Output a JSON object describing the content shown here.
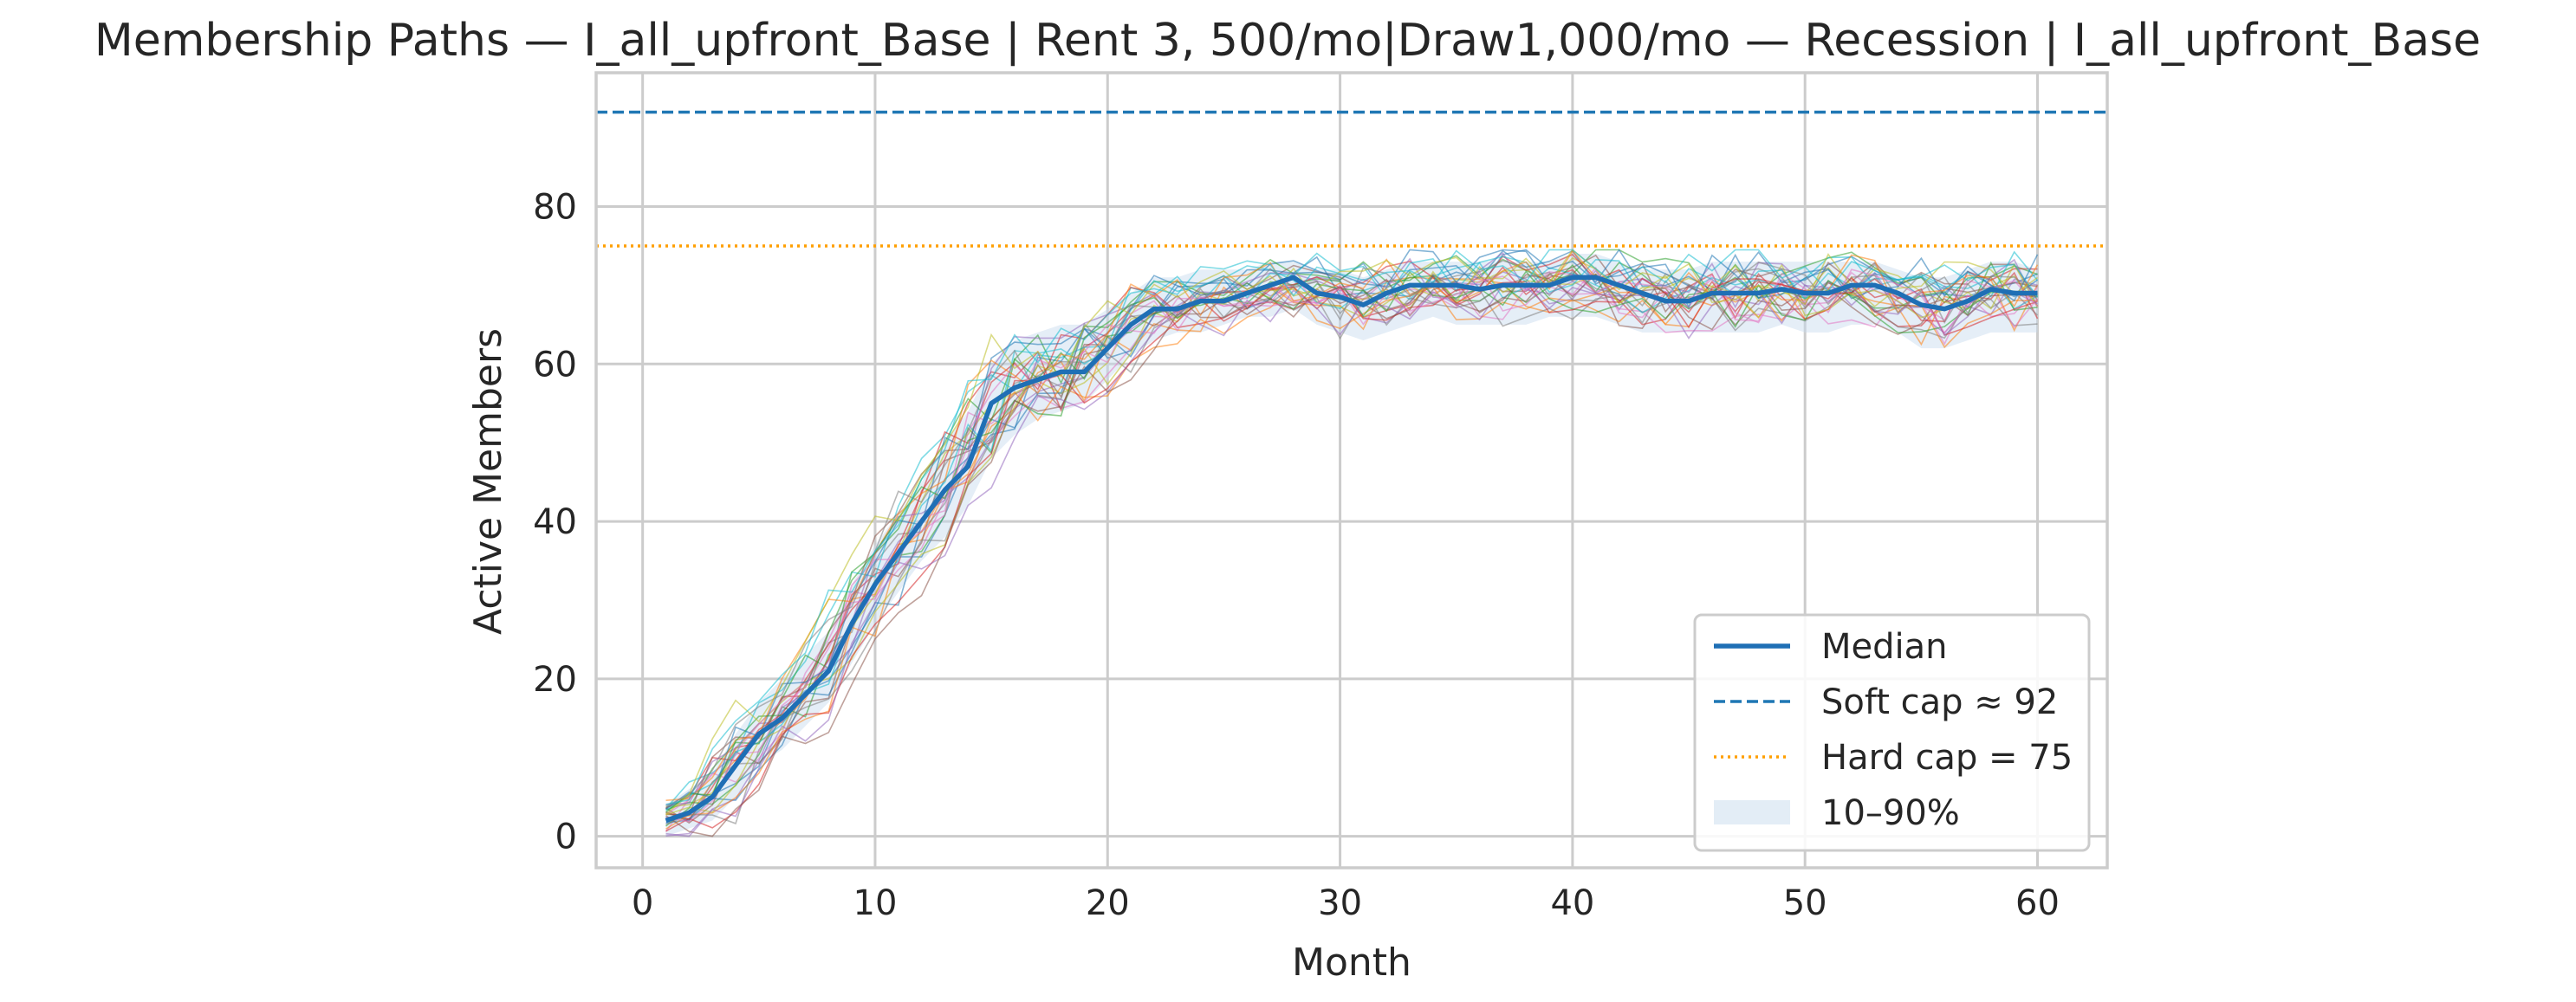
{
  "chart_data": {
    "type": "line",
    "title": "Membership Paths — I_all_upfront_Base | Rent 3, 500/mo|Draw1,000/mo — Recession | I_all_upfront_Base",
    "xlabel": "Month",
    "ylabel": "Active Members",
    "xlim": [
      -2,
      63
    ],
    "ylim": [
      -4,
      97
    ],
    "xticks": [
      0,
      10,
      20,
      30,
      40,
      50,
      60
    ],
    "yticks": [
      0,
      20,
      40,
      60,
      80
    ],
    "grid": true,
    "legend_position": "lower-right",
    "months": [
      1,
      2,
      3,
      4,
      5,
      6,
      7,
      8,
      9,
      10,
      11,
      12,
      13,
      14,
      15,
      16,
      17,
      18,
      19,
      20,
      21,
      22,
      23,
      24,
      25,
      26,
      27,
      28,
      29,
      30,
      31,
      32,
      33,
      34,
      35,
      36,
      37,
      38,
      39,
      40,
      41,
      42,
      43,
      44,
      45,
      46,
      47,
      48,
      49,
      50,
      51,
      52,
      53,
      54,
      55,
      56,
      57,
      58,
      59,
      60
    ],
    "median": [
      2,
      3,
      5,
      9,
      13,
      15,
      18,
      21,
      27,
      32,
      36,
      40,
      44,
      47,
      55,
      57,
      58,
      59,
      59,
      62,
      65,
      67,
      67,
      68,
      68,
      69,
      70,
      71,
      69,
      68.5,
      67.5,
      69,
      70,
      70,
      70,
      69.5,
      70,
      70,
      70,
      71,
      71,
      70,
      69,
      68,
      68,
      69,
      69,
      69,
      69.5,
      69,
      69,
      70,
      70,
      69,
      67.5,
      67,
      68,
      69.5,
      69,
      69
    ],
    "band_p10": [
      0,
      1,
      2,
      5,
      9,
      11,
      14,
      17,
      22,
      27,
      31,
      35,
      38,
      42,
      48,
      51,
      53,
      54,
      55,
      58,
      61,
      63,
      64,
      64,
      65,
      66,
      66,
      67,
      65,
      64,
      63,
      64,
      65,
      66,
      65,
      65,
      65,
      65,
      66,
      66,
      66,
      65,
      64,
      64,
      64,
      64,
      64,
      64,
      65,
      64,
      64,
      65,
      65,
      64,
      62,
      62,
      63,
      64,
      64,
      64
    ],
    "band_p90": [
      4,
      6,
      8,
      13,
      17,
      20,
      23,
      26,
      32,
      37,
      41,
      45,
      50,
      54,
      60,
      63,
      64,
      65,
      65,
      67,
      69,
      71,
      71,
      72,
      72,
      72,
      73,
      73,
      72,
      72,
      71,
      72,
      73,
      73,
      73,
      73,
      73,
      73,
      73,
      74,
      74,
      73,
      72,
      72,
      72,
      73,
      73,
      73,
      73,
      73,
      73,
      73,
      73,
      72,
      71,
      71,
      72,
      73,
      73,
      72
    ],
    "reference_lines": [
      {
        "label": "Soft cap ≈ 92",
        "value": 92,
        "style": "dashed",
        "color": "#1f77b4"
      },
      {
        "label": "Hard cap = 75",
        "value": 75,
        "style": "dotted",
        "color": "#ff9f00"
      }
    ],
    "legend": [
      {
        "label": "Median",
        "kind": "line",
        "color": "#1f6fb5"
      },
      {
        "label": "Soft cap ≈ 92",
        "kind": "dashed",
        "color": "#1f77b4"
      },
      {
        "label": "Hard cap = 75",
        "kind": "dotted",
        "color": "#ff9f00"
      },
      {
        "label": "10–90%",
        "kind": "band",
        "color": "#e3edf6"
      }
    ],
    "path_colors": [
      "#1f77b4",
      "#ff7f0e",
      "#2ca02c",
      "#d62728",
      "#9467bd",
      "#8c564b",
      "#e377c2",
      "#7f7f7f",
      "#bcbd22",
      "#17becf"
    ],
    "simulated_paths_count": 30
  }
}
